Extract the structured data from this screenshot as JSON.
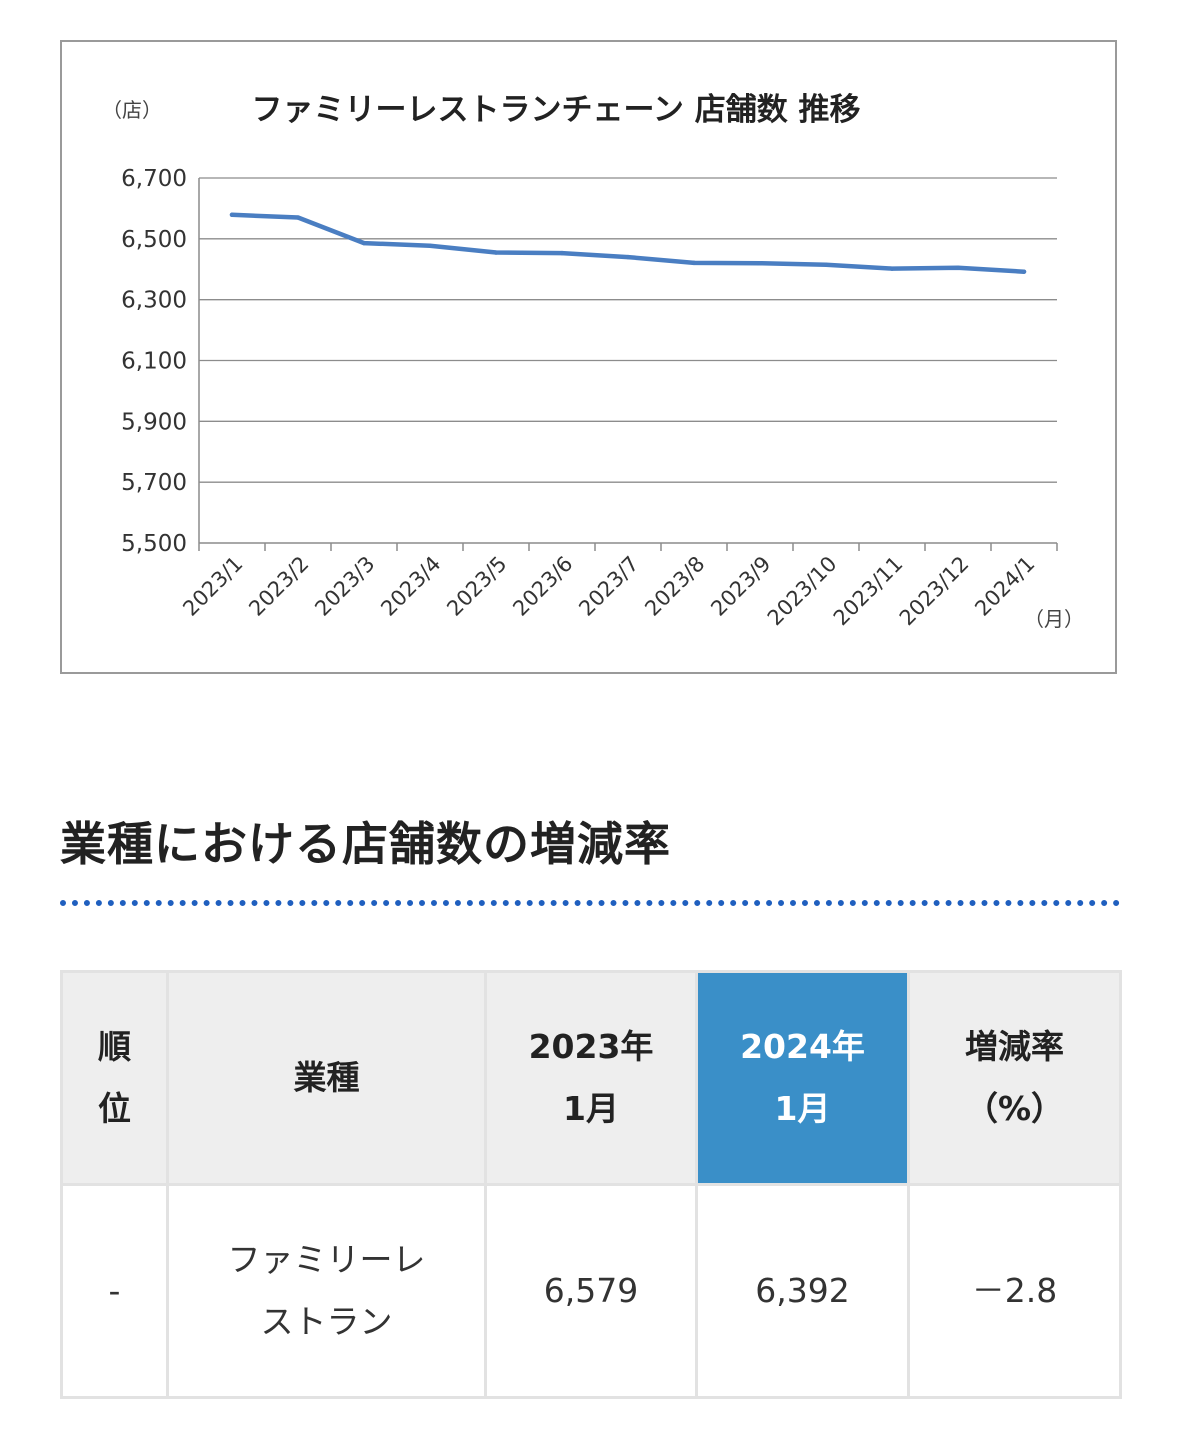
{
  "chart_data": {
    "type": "line",
    "title": "ファミリーレストランチェーン 店舗数 推移",
    "ylabel": "（店）",
    "xlabel": "（月）",
    "categories": [
      "2023/1",
      "2023/2",
      "2023/3",
      "2023/4",
      "2023/5",
      "2023/6",
      "2023/7",
      "2023/8",
      "2023/9",
      "2023/10",
      "2023/11",
      "2023/12",
      "2024/1"
    ],
    "series": [
      {
        "values": [
          6579,
          6570,
          6486,
          6477,
          6455,
          6453,
          6440,
          6421,
          6420,
          6415,
          6402,
          6405,
          6392
        ]
      }
    ],
    "ylim": [
      5500,
      6700
    ],
    "yticks": [
      5500,
      5700,
      5900,
      6100,
      6300,
      6500,
      6700
    ],
    "ytick_labels": [
      "5,500",
      "5,700",
      "5,900",
      "6,100",
      "6,300",
      "6,500",
      "6,700"
    ],
    "grid": true,
    "legend": "none",
    "line_color": "#4a7ec2"
  },
  "section": {
    "heading": "業種における店舗数の増減率"
  },
  "table": {
    "headers": [
      [
        "順",
        "位"
      ],
      [
        "業種"
      ],
      [
        "2023年",
        "1月"
      ],
      [
        "2024年",
        "1月"
      ],
      [
        "増減率",
        "（%）"
      ]
    ],
    "row": {
      "rank": "-",
      "industry": [
        "ファミリーレ",
        "ストラン"
      ],
      "y2023": "6,579",
      "y2024": "6,392",
      "rate": "－2.8"
    }
  },
  "colors": {
    "accent": "#3a8fc8",
    "rule": "#1f5fbf"
  }
}
